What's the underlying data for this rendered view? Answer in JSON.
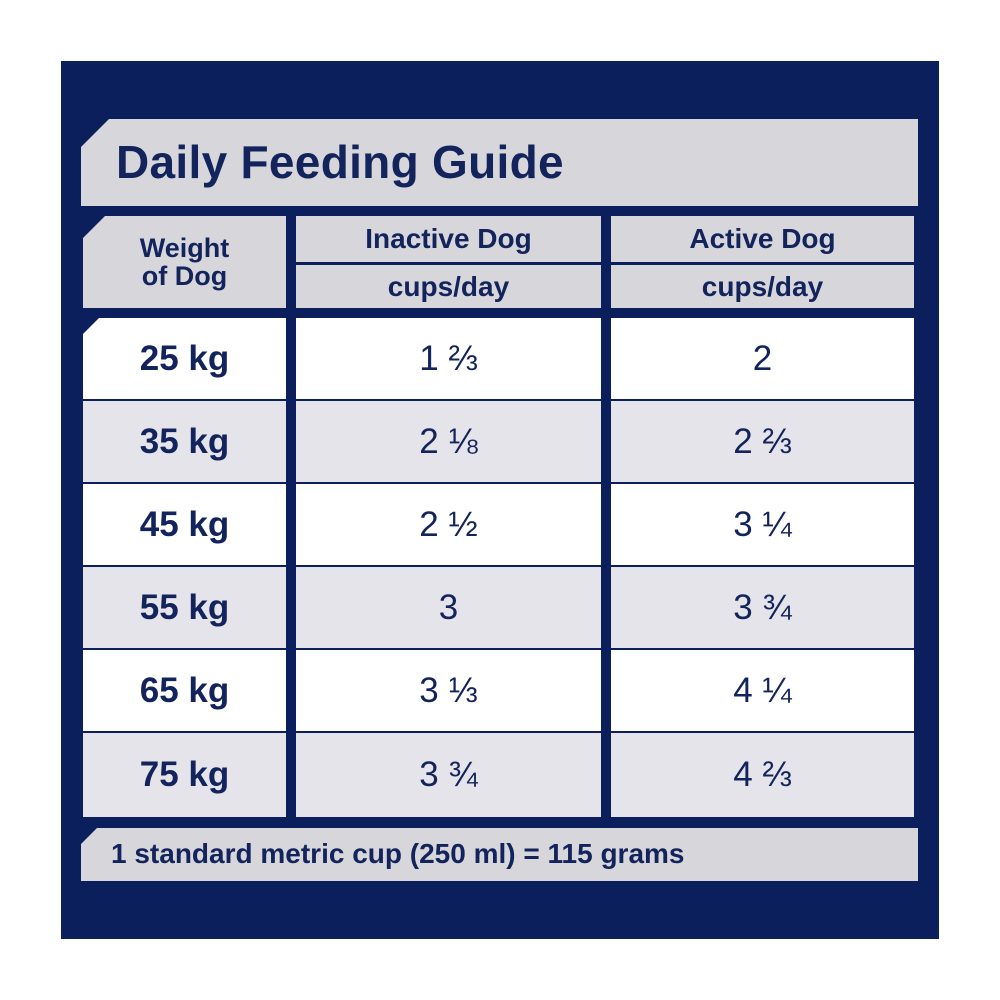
{
  "title": "Daily Feeding Guide",
  "headers": {
    "weight_line1": "Weight",
    "weight_line2": "of Dog",
    "inactive": "Inactive Dog",
    "inactive_unit": "cups/day",
    "active": "Active Dog",
    "active_unit": "cups/day"
  },
  "rows": [
    {
      "weight": "25 kg",
      "inactive": "1 ⅔",
      "active": "2"
    },
    {
      "weight": "35 kg",
      "inactive": "2 ⅛",
      "active": "2 ⅔"
    },
    {
      "weight": "45 kg",
      "inactive": "2 ½",
      "active": "3 ¼"
    },
    {
      "weight": "55 kg",
      "inactive": "3",
      "active": "3 ¾"
    },
    {
      "weight": "65 kg",
      "inactive": "3 ⅓",
      "active": "4 ¼"
    },
    {
      "weight": "75 kg",
      "inactive": "3 ¾",
      "active": "4 ⅔"
    }
  ],
  "footer": "1 standard metric cup (250 ml) = 115 grams",
  "colors": {
    "navy": "#0b1f5c",
    "text": "#13235b",
    "grey": "#d7d7db",
    "row_alt": "#e4e4ea"
  }
}
